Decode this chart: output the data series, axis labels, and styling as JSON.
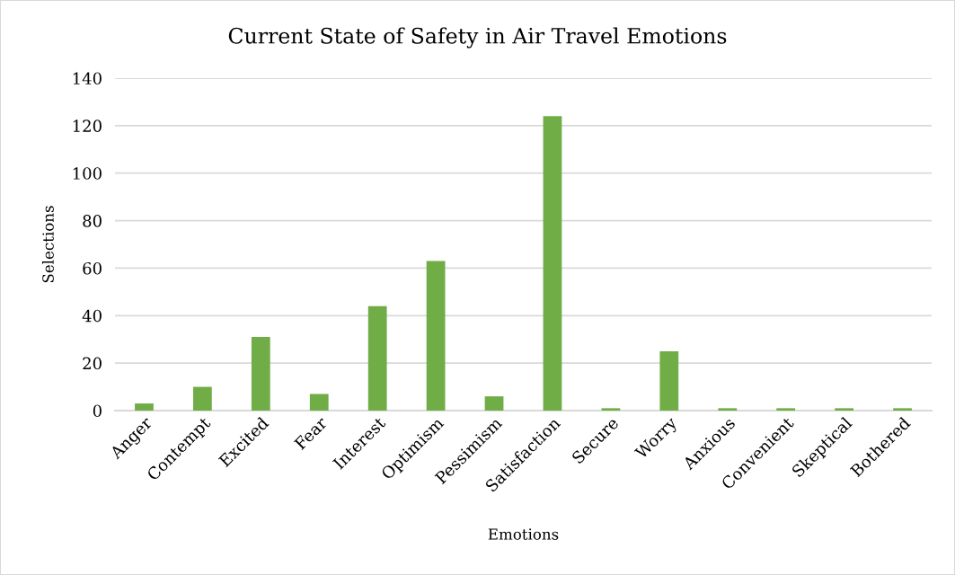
{
  "chart_data": {
    "type": "bar",
    "title": "Current State of Safety in Air Travel Emotions",
    "xlabel": "Emotions",
    "ylabel": "Selections",
    "categories": [
      "Anger",
      "Contempt",
      "Excited",
      "Fear",
      "Interest",
      "Optimism",
      "Pessimism",
      "Satisfaction",
      "Secure",
      "Worry",
      "Anxious",
      "Convenient",
      "Skeptical",
      "Bothered"
    ],
    "values": [
      3,
      10,
      31,
      7,
      44,
      63,
      6,
      124,
      1,
      25,
      1,
      1,
      1,
      1
    ],
    "color": "#70ad47",
    "ylim": [
      0,
      140
    ],
    "yticks": [
      0,
      20,
      40,
      60,
      80,
      100,
      120,
      140
    ],
    "grid": "y"
  }
}
